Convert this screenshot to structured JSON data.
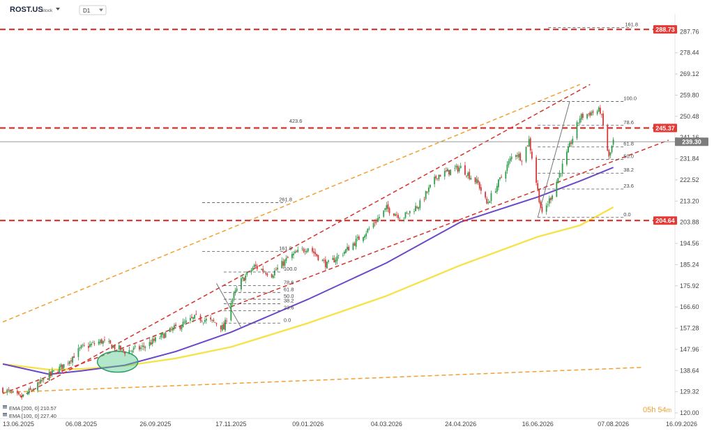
{
  "header": {
    "symbol": "ROST.US",
    "asset_type": "Stock",
    "timeframe": "D1"
  },
  "colors": {
    "background": "#ffffff",
    "candle_up": "#2e9e4a",
    "candle_down": "#d23a3a",
    "level_line": "#d8312b",
    "channel_outer": "#f0a030",
    "ema200": "#f7e24a",
    "ema100": "#6b48c8",
    "price_tag_red": "#e53935",
    "price_tag_gray": "#7c7c7c",
    "highlight_ellipse": "#57c98f",
    "countdown": "#f0a030"
  },
  "legend": {
    "ema200": "EMA [200, 0] 210.57",
    "ema100": "EMA [100, 0] 227.40"
  },
  "countdown": {
    "hours": "05h",
    "minutes": "54",
    "unit": "m"
  },
  "chart_data": {
    "type": "candlestick",
    "y_axis": {
      "min": 120.0,
      "max": 294.0,
      "ticks": [
        287.76,
        278.44,
        269.12,
        259.8,
        250.48,
        241.16,
        231.84,
        222.52,
        213.2,
        203.88,
        194.56,
        185.24,
        175.92,
        166.6,
        157.28,
        147.96,
        138.64,
        129.32,
        120.0
      ]
    },
    "x_axis": {
      "start": "2025-06-13",
      "end": "2026-09-16",
      "tick_labels": [
        "13.06.2025",
        "06.08.2025",
        "26.09.2025",
        "17.11.2025",
        "09.01.2026",
        "04.03.2026",
        "24.04.2026",
        "16.06.2026",
        "07.08.2026",
        "16.09.2026"
      ],
      "last_candle": "2026-08-07"
    },
    "price_path": [
      [
        "2025-06-13",
        130.5
      ],
      [
        "2025-06-25",
        126.5
      ],
      [
        "2025-07-05",
        131.0
      ],
      [
        "2025-07-15",
        136.5
      ],
      [
        "2025-07-25",
        141.0
      ],
      [
        "2025-08-06",
        148.5
      ],
      [
        "2025-08-20",
        151.5
      ],
      [
        "2025-09-05",
        147.0
      ],
      [
        "2025-09-16",
        148.5
      ],
      [
        "2025-09-26",
        152.0
      ],
      [
        "2025-10-10",
        157.5
      ],
      [
        "2025-10-24",
        162.0
      ],
      [
        "2025-11-07",
        159.5
      ],
      [
        "2025-11-12",
        157.0
      ],
      [
        "2025-11-17",
        169.0
      ],
      [
        "2025-11-24",
        178.0
      ],
      [
        "2025-12-03",
        184.5
      ],
      [
        "2025-12-15",
        181.0
      ],
      [
        "2025-12-27",
        188.5
      ],
      [
        "2026-01-09",
        193.0
      ],
      [
        "2026-01-22",
        185.0
      ],
      [
        "2026-02-05",
        192.0
      ],
      [
        "2026-02-20",
        201.0
      ],
      [
        "2026-03-04",
        210.0
      ],
      [
        "2026-03-15",
        206.0
      ],
      [
        "2026-03-27",
        212.0
      ],
      [
        "2026-04-08",
        224.5
      ],
      [
        "2026-04-24",
        228.0
      ],
      [
        "2026-05-06",
        221.0
      ],
      [
        "2026-05-12",
        212.0
      ],
      [
        "2026-05-19",
        220.0
      ],
      [
        "2026-05-31",
        235.0
      ],
      [
        "2026-06-05",
        232.0
      ],
      [
        "2026-06-10",
        240.0
      ],
      [
        "2026-06-16",
        218.0
      ],
      [
        "2026-06-19",
        207.0
      ],
      [
        "2026-06-25",
        215.0
      ],
      [
        "2026-07-05",
        232.0
      ],
      [
        "2026-07-15",
        250.0
      ],
      [
        "2026-07-22",
        252.0
      ],
      [
        "2026-07-29",
        253.0
      ],
      [
        "2026-08-01",
        243.0
      ],
      [
        "2026-08-04",
        232.0
      ],
      [
        "2026-08-07",
        239.3
      ]
    ],
    "series": [
      {
        "name": "EMA [200, 0]",
        "color": "#f7e24a",
        "last_value": 210.57,
        "values": [
          [
            "2025-06-13",
            141.5
          ],
          [
            "2025-07-15",
            139.0
          ],
          [
            "2025-08-06",
            139.3
          ],
          [
            "2025-09-05",
            140.7
          ],
          [
            "2025-10-10",
            144.0
          ],
          [
            "2025-11-17",
            149.0
          ],
          [
            "2026-01-09",
            159.5
          ],
          [
            "2026-03-04",
            171.5
          ],
          [
            "2026-04-24",
            185.0
          ],
          [
            "2026-06-16",
            197.5
          ],
          [
            "2026-07-15",
            202.5
          ],
          [
            "2026-08-07",
            210.5
          ]
        ]
      },
      {
        "name": "EMA [100, 0]",
        "color": "#6b48c8",
        "last_value": 227.4,
        "values": [
          [
            "2025-06-13",
            141.5
          ],
          [
            "2025-07-15",
            137.0
          ],
          [
            "2025-08-06",
            138.5
          ],
          [
            "2025-09-05",
            141.0
          ],
          [
            "2025-10-10",
            147.0
          ],
          [
            "2025-11-17",
            155.5
          ],
          [
            "2026-01-09",
            170.0
          ],
          [
            "2026-03-04",
            186.0
          ],
          [
            "2026-04-24",
            204.0
          ],
          [
            "2026-06-16",
            215.0
          ],
          [
            "2026-07-15",
            222.0
          ],
          [
            "2026-08-07",
            228.0
          ]
        ]
      }
    ],
    "horizontal_levels": [
      {
        "price": 288.73,
        "label": "288.73",
        "label_color": "#e53935"
      },
      {
        "price": 245.37,
        "label": "245.37",
        "label_color": "#e53935"
      },
      {
        "price": 239.3,
        "label": "239.30",
        "label_color": "#7c7c7c"
      },
      {
        "price": 204.64,
        "label": "204.64",
        "label_color": "#e53935"
      }
    ],
    "channel_lines": [
      {
        "style": "red",
        "from": [
          "2025-06-25",
          127.0
        ],
        "to": [
          "2026-07-22",
          264.5
        ]
      },
      {
        "style": "red",
        "from": [
          "2025-06-13",
          128.5
        ],
        "to": [
          "2026-09-14",
          240.0
        ]
      },
      {
        "style": "orange",
        "from": [
          "2025-06-13",
          160.0
        ],
        "to": [
          "2026-07-15",
          264.5
        ]
      },
      {
        "style": "orange",
        "from": [
          "2025-06-13",
          129.0
        ],
        "to": [
          "2026-08-27",
          140.0
        ]
      }
    ],
    "fib_extension_labels": [
      {
        "text": "423.6",
        "price": 247.0,
        "date": "2025-12-27"
      },
      {
        "text": "261.8",
        "price": 212.5,
        "date": "2025-12-20"
      },
      {
        "text": "161.8",
        "price": 191.0,
        "date": "2025-12-20"
      },
      {
        "text": "161.8",
        "price": 289.5,
        "date": "2026-08-15"
      }
    ],
    "fib_retracement_small": {
      "from": "2025-11-12",
      "to": "2025-12-22",
      "levels": [
        {
          "text": "100.0",
          "price": 182.0
        },
        {
          "text": "78.6",
          "price": 176.0
        },
        {
          "text": "61.8",
          "price": 173.0
        },
        {
          "text": "50.0",
          "price": 170.0
        },
        {
          "text": "38.2",
          "price": 168.0
        },
        {
          "text": "23.6",
          "price": 165.0
        },
        {
          "text": "0.0",
          "price": 159.5
        }
      ]
    },
    "fib_retracement_large": {
      "from": "2026-06-16",
      "to": "2026-08-15",
      "levels": [
        {
          "text": "100.0",
          "price": 257.0
        },
        {
          "text": "78.6",
          "price": 246.5
        },
        {
          "text": "61.8",
          "price": 237.0
        },
        {
          "text": "50.0",
          "price": 231.5
        },
        {
          "text": "38.2",
          "price": 225.5
        },
        {
          "text": "23.6",
          "price": 218.5
        },
        {
          "text": "0.0",
          "price": 206.0
        }
      ]
    },
    "trend_strokes": [
      {
        "from": [
          "2025-11-07",
          177.0
        ],
        "to": [
          "2025-11-24",
          157.5
        ]
      },
      {
        "from": [
          "2026-06-16",
          206.0
        ],
        "to": [
          "2026-07-08",
          257.0
        ]
      }
    ],
    "highlight": {
      "center": [
        "2025-08-31",
        142.5
      ],
      "shape": "ellipse"
    }
  }
}
